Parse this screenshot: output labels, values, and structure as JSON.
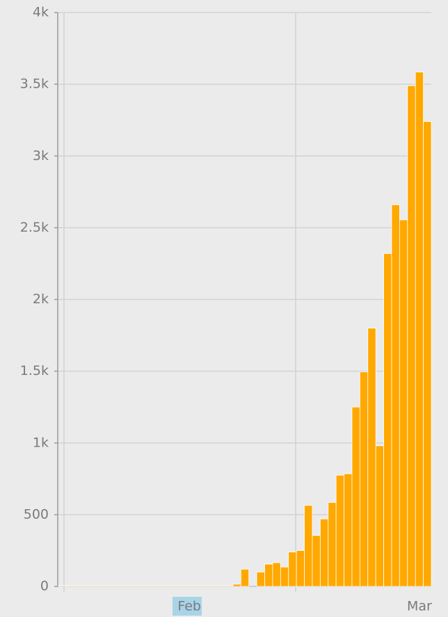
{
  "chart_data": {
    "type": "bar",
    "categories": [
      null,
      null,
      null,
      null,
      null,
      null,
      null,
      null,
      null,
      null,
      null,
      null,
      null,
      null,
      null,
      null,
      "Feb",
      null,
      null,
      null,
      null,
      null,
      null,
      null,
      null,
      null,
      null,
      null,
      null,
      null,
      null,
      null,
      null,
      null,
      null,
      null,
      null,
      null,
      null,
      null,
      null,
      null,
      null,
      null,
      null,
      "Mar",
      null
    ],
    "values": [
      5,
      5,
      5,
      5,
      5,
      5,
      5,
      5,
      5,
      5,
      5,
      5,
      5,
      5,
      5,
      5,
      5,
      5,
      5,
      5,
      5,
      5,
      15,
      120,
      0,
      100,
      155,
      165,
      135,
      240,
      250,
      565,
      355,
      470,
      585,
      775,
      785,
      1250,
      1495,
      1800,
      980,
      2320,
      2660,
      2555,
      3490,
      3585,
      3240
    ],
    "color": "#ffa800",
    "ylim": [
      0,
      4000
    ],
    "yticks": [
      0,
      500,
      {
        "value": 1000,
        "label": "1k"
      },
      {
        "value": 1500,
        "label": "1.5k"
      },
      {
        "value": 2000,
        "label": "2k"
      },
      {
        "value": 2500,
        "label": "2.5k"
      },
      {
        "value": 3000,
        "label": "3k"
      },
      {
        "value": 3500,
        "label": "3.5k"
      },
      {
        "value": 4000,
        "label": "4k"
      }
    ],
    "grid": true
  }
}
